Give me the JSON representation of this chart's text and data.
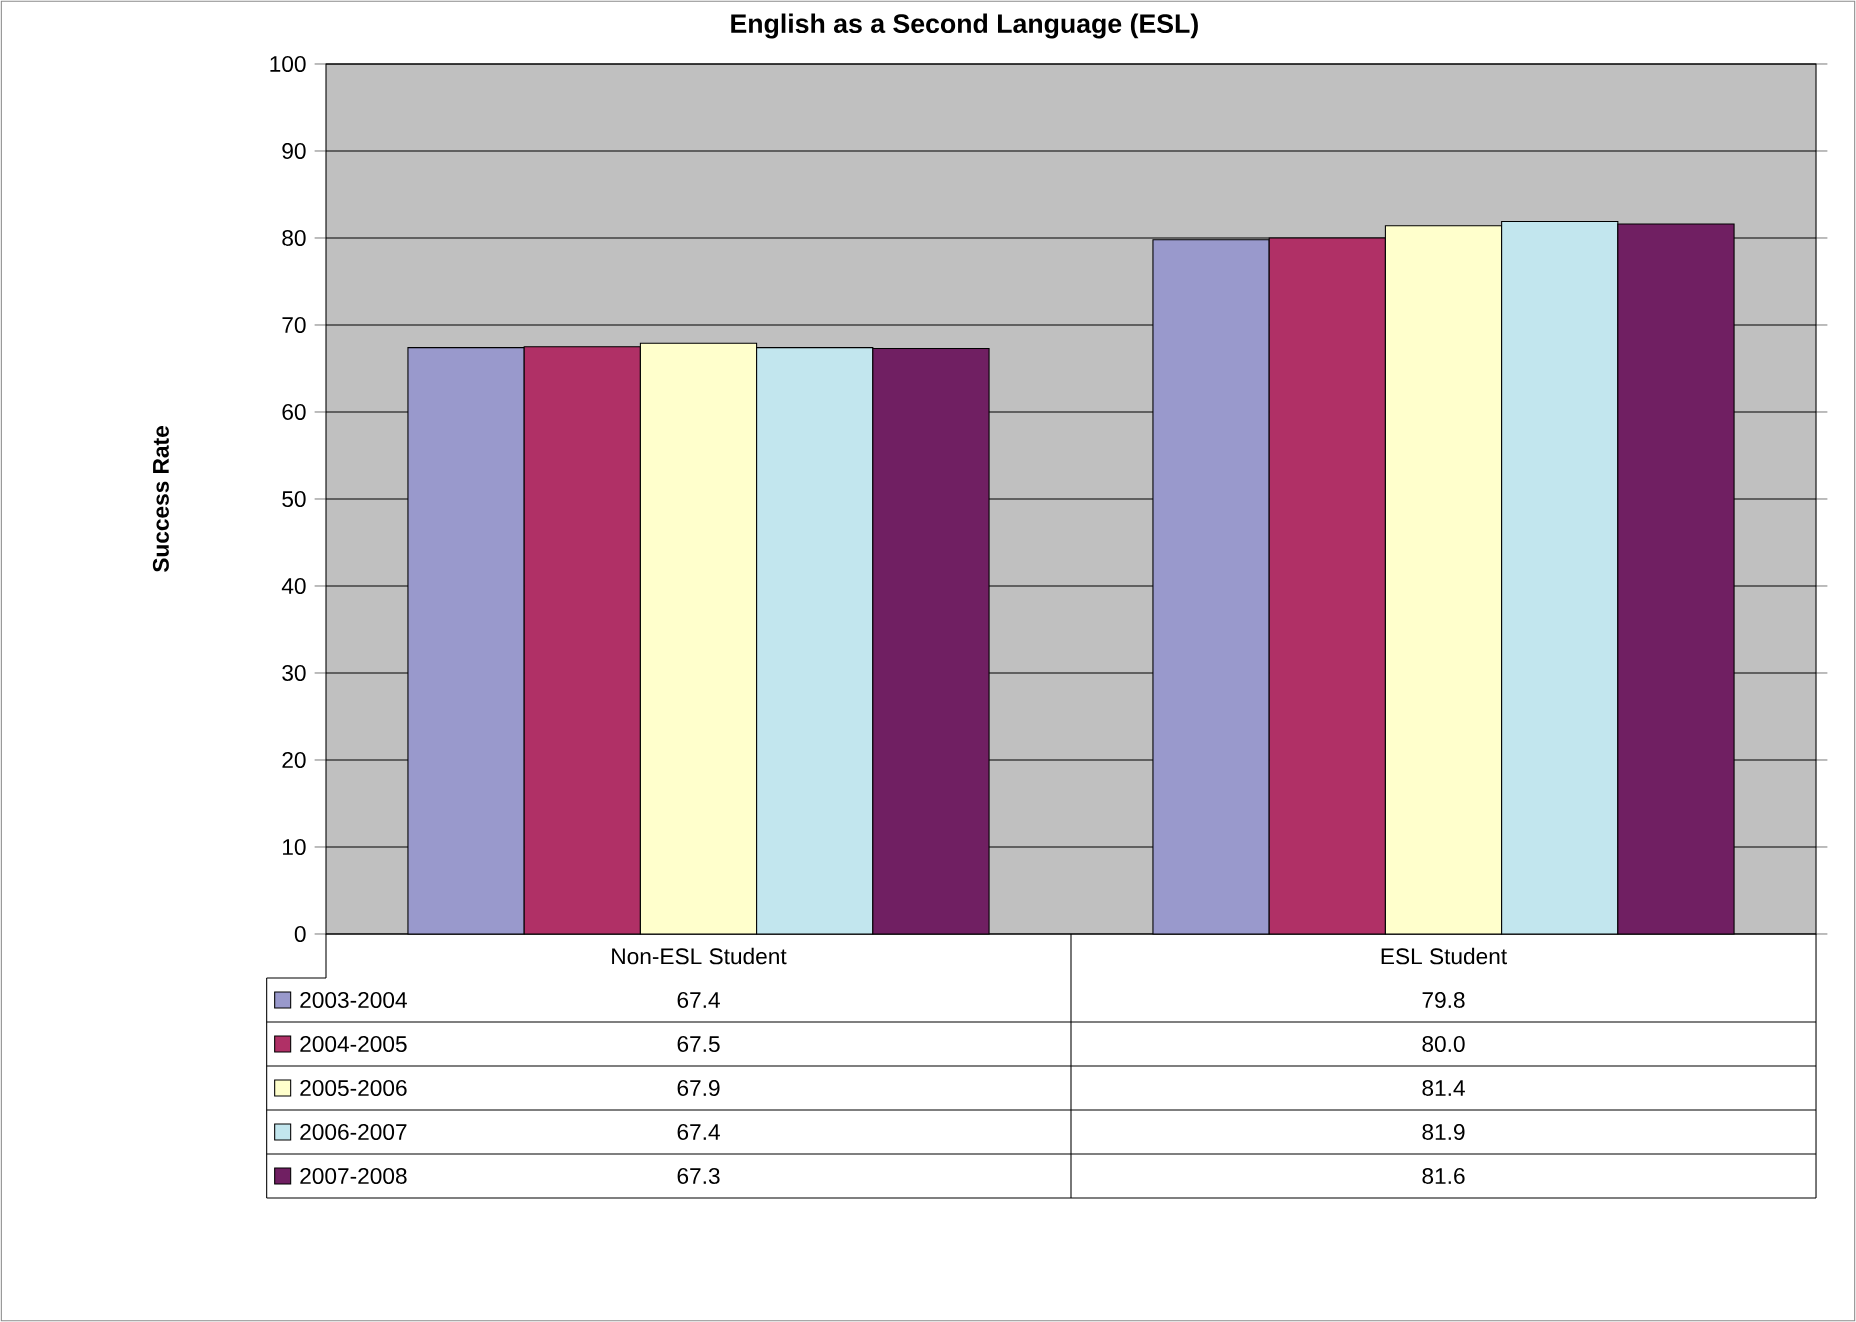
{
  "chart_data": {
    "type": "bar",
    "title": "English as a Second Language (ESL)",
    "ylabel": "Success Rate",
    "categories": [
      "Non-ESL Student",
      "ESL Student"
    ],
    "series": [
      {
        "name": "2003-2004",
        "color": "#9999cc",
        "values": [
          67.4,
          79.8
        ],
        "value_labels": [
          "67.4",
          "79.8"
        ]
      },
      {
        "name": "2004-2005",
        "color": "#b03066",
        "values": [
          67.5,
          80.0
        ],
        "value_labels": [
          "67.5",
          "80.0"
        ]
      },
      {
        "name": "2005-2006",
        "color": "#ffffcc",
        "values": [
          67.9,
          81.4
        ],
        "value_labels": [
          "67.9",
          "81.4"
        ]
      },
      {
        "name": "2006-2007",
        "color": "#c2e6ee",
        "values": [
          67.4,
          81.9
        ],
        "value_labels": [
          "67.4",
          "81.9"
        ]
      },
      {
        "name": "2007-2008",
        "color": "#701f62",
        "values": [
          67.3,
          81.6
        ],
        "value_labels": [
          "67.3",
          "81.6"
        ]
      }
    ],
    "ylim": [
      0,
      100
    ],
    "yticks": [
      0,
      10,
      20,
      30,
      40,
      50,
      60,
      70,
      80,
      90,
      100
    ],
    "grid": "y",
    "legend": "bottom"
  }
}
